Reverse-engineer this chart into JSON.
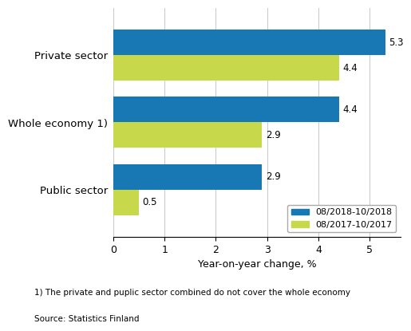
{
  "categories": [
    "Public sector",
    "Whole economy 1)",
    "Private sector"
  ],
  "series": [
    {
      "label": "08/2018-10/2018",
      "color": "#1878b4",
      "values": [
        2.9,
        4.4,
        5.3
      ]
    },
    {
      "label": "08/2017-10/2017",
      "color": "#c8d84b",
      "values": [
        0.5,
        2.9,
        4.4
      ]
    }
  ],
  "xlabel": "Year-on-year change, %",
  "xlim": [
    0,
    5.6
  ],
  "xticks": [
    0,
    1,
    2,
    3,
    4,
    5
  ],
  "bar_height": 0.38,
  "footnote1": "1) The private and puplic sector combined do not cover the whole economy",
  "footnote2": "Source: Statistics Finland",
  "value_fontsize": 8.5,
  "ytick_fontsize": 9.5,
  "xtick_fontsize": 9,
  "xlabel_fontsize": 9,
  "legend_fontsize": 8,
  "background_color": "#ffffff",
  "grid_color": "#cccccc"
}
